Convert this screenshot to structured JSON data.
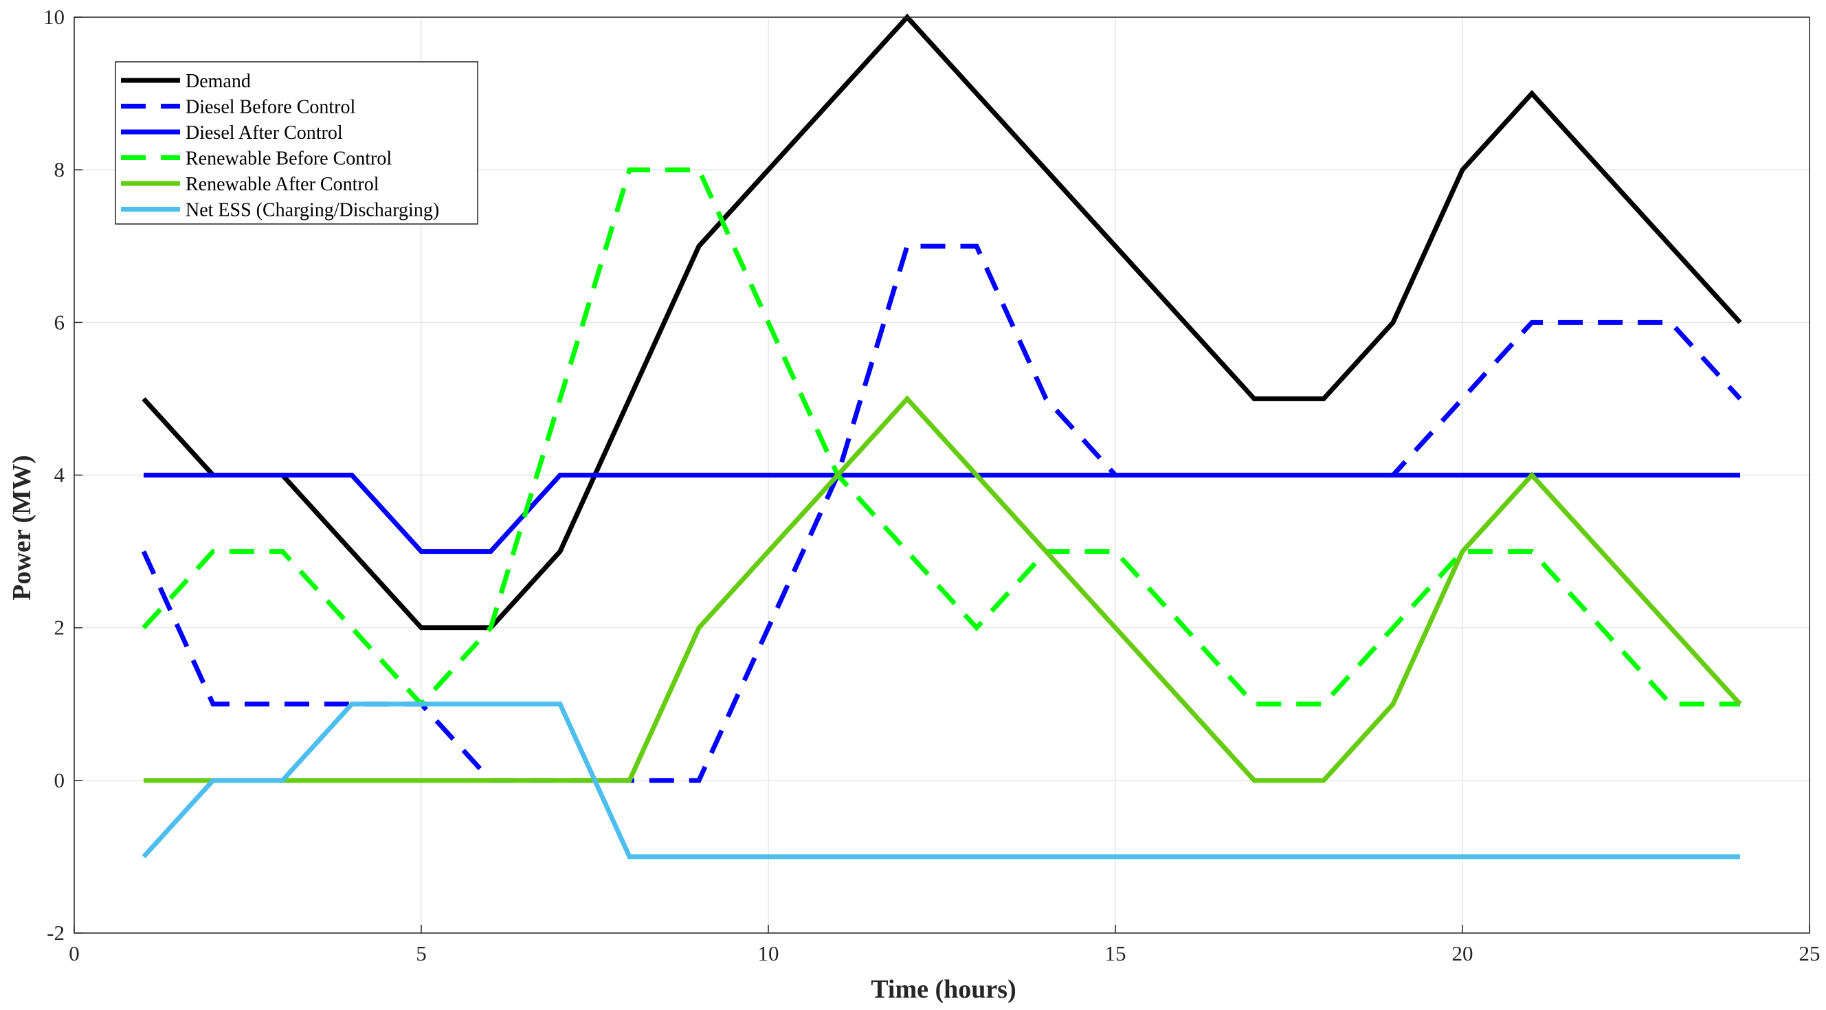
{
  "chart_data": {
    "type": "line",
    "title": "",
    "xlabel": "Time (hours)",
    "ylabel": "Power (MW)",
    "xlim": [
      0,
      25
    ],
    "ylim": [
      -2,
      10
    ],
    "xticks": [
      0,
      5,
      10,
      15,
      20,
      25
    ],
    "yticks": [
      -2,
      0,
      2,
      4,
      6,
      8,
      10
    ],
    "grid": true,
    "legend_position": "top-left",
    "x": [
      1,
      2,
      3,
      4,
      5,
      6,
      7,
      8,
      9,
      10,
      11,
      12,
      13,
      14,
      15,
      16,
      17,
      18,
      19,
      20,
      21,
      22,
      23,
      24
    ],
    "series": [
      {
        "name": "Demand",
        "color": "#000000",
        "style": "solid",
        "values": [
          5,
          4,
          4,
          3,
          2,
          2,
          3,
          5,
          7,
          8,
          9,
          10,
          9,
          8,
          7,
          6,
          5,
          5,
          6,
          8,
          9,
          8,
          7,
          6
        ]
      },
      {
        "name": "Diesel Before Control",
        "color": "#0000FF",
        "style": "dashed",
        "values": [
          3,
          1,
          1,
          1,
          1,
          0,
          0,
          0,
          0,
          2,
          4,
          7,
          7,
          5,
          4,
          4,
          4,
          4,
          4,
          5,
          6,
          6,
          6,
          5
        ]
      },
      {
        "name": "Diesel After Control",
        "color": "#0000FF",
        "style": "solid",
        "values": [
          4,
          4,
          4,
          4,
          3,
          3,
          4,
          4,
          4,
          4,
          4,
          4,
          4,
          4,
          4,
          4,
          4,
          4,
          4,
          4,
          4,
          4,
          4,
          4
        ]
      },
      {
        "name": "Renewable Before Control",
        "color": "#00FF00",
        "style": "dashed",
        "values": [
          2,
          3,
          3,
          2,
          1,
          2,
          5,
          8,
          8,
          6,
          4,
          3,
          2,
          3,
          3,
          2,
          1,
          1,
          2,
          3,
          3,
          2,
          1,
          1
        ]
      },
      {
        "name": "Renewable After Control",
        "color": "#66CC11",
        "style": "solid",
        "values": [
          0,
          0,
          0,
          0,
          0,
          0,
          0,
          0,
          2,
          3,
          4,
          5,
          4,
          3,
          2,
          1,
          0,
          0,
          1,
          3,
          4,
          3,
          2,
          1
        ]
      },
      {
        "name": "Net ESS (Charging/Discharging)",
        "color": "#4DBEEE",
        "style": "solid",
        "values": [
          -1,
          0,
          0,
          1,
          1,
          1,
          1,
          -1,
          -1,
          -1,
          -1,
          -1,
          -1,
          -1,
          -1,
          -1,
          -1,
          -1,
          -1,
          -1,
          -1,
          -1,
          -1,
          -1
        ]
      }
    ]
  }
}
